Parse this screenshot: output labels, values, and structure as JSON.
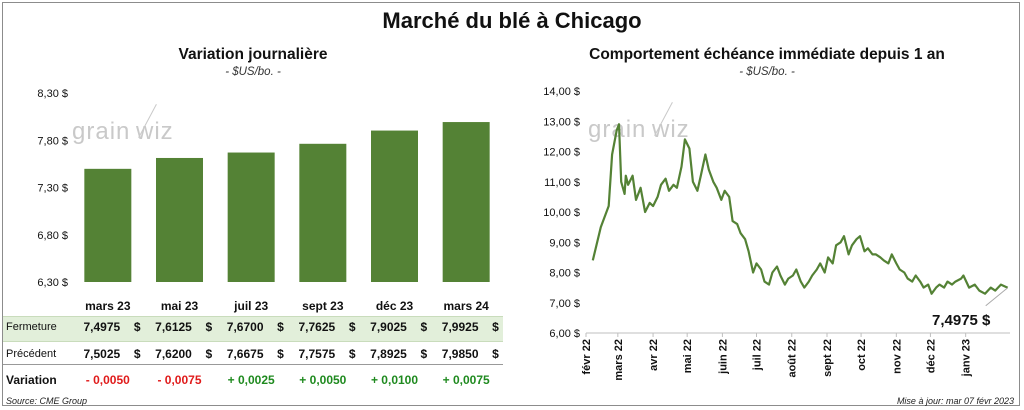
{
  "main_title": "Marché du blé à Chicago",
  "watermark": "grainwiz",
  "left": {
    "title": "Variation  journalière",
    "subtitle": "- $US/bo. -",
    "chart_data": {
      "type": "bar",
      "categories": [
        "mars 23",
        "mai 23",
        "juil 23",
        "sept 23",
        "déc 23",
        "mars 24"
      ],
      "values": [
        7.4975,
        7.6125,
        7.67,
        7.7625,
        7.9025,
        7.9925
      ],
      "ylim": [
        6.3,
        8.3
      ],
      "yticks": [
        "6,30 $",
        "6,80 $",
        "7,30 $",
        "7,80 $",
        "8,30 $"
      ],
      "ytick_values": [
        6.3,
        6.8,
        7.3,
        7.8,
        8.3
      ],
      "bar_color": "#548235"
    },
    "table": {
      "row_labels": {
        "fermeture": "Fermeture",
        "precedent": "Précédent",
        "variation": "Variation"
      },
      "fermeture": [
        "7,4975",
        "7,6125",
        "7,6700",
        "7,7625",
        "7,9025",
        "7,9925"
      ],
      "precedent": [
        "7,5025",
        "7,6200",
        "7,6675",
        "7,7575",
        "7,8925",
        "7,9850"
      ],
      "variation": [
        "- 0,0050",
        "- 0,0075",
        "+ 0,0025",
        "+ 0,0050",
        "+ 0,0100",
        "+ 0,0075"
      ],
      "variation_sign": [
        "neg",
        "neg",
        "pos",
        "pos",
        "pos",
        "pos"
      ],
      "dollar": "$"
    }
  },
  "right": {
    "title": "Comportement  échéance immédiate depuis 1 an",
    "subtitle": "- $US/bo. -",
    "last_price": "7,4975 $",
    "chart_data": {
      "type": "line",
      "ylim": [
        6.0,
        14.0
      ],
      "yticks": [
        "6,00 $",
        "7,00 $",
        "8,00 $",
        "9,00 $",
        "10,00 $",
        "11,00 $",
        "12,00 $",
        "13,00 $",
        "14,00 $"
      ],
      "ytick_values": [
        6,
        7,
        8,
        9,
        10,
        11,
        12,
        13,
        14
      ],
      "xticks": [
        "févr 22",
        "mars 22",
        "avr 22",
        "mai 22",
        "juin 22",
        "juil 22",
        "août 22",
        "sept 22",
        "oct 22",
        "nov 22",
        "déc 22",
        "janv 23"
      ],
      "line_color": "#548235",
      "x": [
        "2022-02-07",
        "2022-02-14",
        "2022-02-21",
        "2022-02-24",
        "2022-02-28",
        "2022-03-02",
        "2022-03-04",
        "2022-03-07",
        "2022-03-08",
        "2022-03-10",
        "2022-03-14",
        "2022-03-17",
        "2022-03-21",
        "2022-03-25",
        "2022-03-29",
        "2022-04-01",
        "2022-04-05",
        "2022-04-08",
        "2022-04-12",
        "2022-04-15",
        "2022-04-19",
        "2022-04-22",
        "2022-04-26",
        "2022-04-29",
        "2022-05-03",
        "2022-05-06",
        "2022-05-10",
        "2022-05-13",
        "2022-05-17",
        "2022-05-20",
        "2022-05-24",
        "2022-05-27",
        "2022-05-31",
        "2022-06-03",
        "2022-06-07",
        "2022-06-10",
        "2022-06-14",
        "2022-06-17",
        "2022-06-21",
        "2022-06-24",
        "2022-06-28",
        "2022-07-01",
        "2022-07-05",
        "2022-07-08",
        "2022-07-12",
        "2022-07-15",
        "2022-07-19",
        "2022-07-22",
        "2022-07-26",
        "2022-07-29",
        "2022-08-02",
        "2022-08-05",
        "2022-08-09",
        "2022-08-12",
        "2022-08-16",
        "2022-08-19",
        "2022-08-23",
        "2022-08-26",
        "2022-08-30",
        "2022-09-02",
        "2022-09-06",
        "2022-09-09",
        "2022-09-13",
        "2022-09-16",
        "2022-09-20",
        "2022-09-23",
        "2022-09-27",
        "2022-09-30",
        "2022-10-04",
        "2022-10-07",
        "2022-10-11",
        "2022-10-14",
        "2022-10-18",
        "2022-10-21",
        "2022-10-25",
        "2022-10-28",
        "2022-11-01",
        "2022-11-04",
        "2022-11-08",
        "2022-11-11",
        "2022-11-15",
        "2022-11-18",
        "2022-11-22",
        "2022-11-25",
        "2022-11-29",
        "2022-12-02",
        "2022-12-06",
        "2022-12-09",
        "2022-12-13",
        "2022-12-16",
        "2022-12-20",
        "2022-12-23",
        "2022-12-28",
        "2022-12-30",
        "2023-01-04",
        "2023-01-09",
        "2023-01-13",
        "2023-01-18",
        "2023-01-23",
        "2023-01-27",
        "2023-02-01",
        "2023-02-07"
      ],
      "y": [
        8.4,
        9.5,
        10.2,
        11.9,
        12.7,
        12.9,
        11.0,
        10.6,
        11.2,
        10.9,
        11.2,
        10.4,
        10.8,
        10.0,
        10.3,
        10.2,
        10.5,
        10.9,
        11.1,
        10.7,
        10.9,
        10.8,
        11.5,
        12.4,
        12.1,
        11.0,
        10.7,
        11.2,
        11.9,
        11.4,
        11.0,
        10.8,
        10.4,
        10.7,
        10.5,
        9.7,
        9.6,
        9.3,
        9.1,
        8.7,
        8.0,
        8.3,
        8.1,
        7.7,
        7.6,
        8.0,
        8.2,
        7.9,
        7.6,
        7.8,
        7.9,
        8.1,
        7.7,
        7.5,
        7.7,
        7.9,
        8.1,
        8.3,
        8.0,
        8.5,
        8.3,
        8.9,
        9.0,
        9.2,
        8.6,
        8.9,
        9.1,
        9.2,
        8.7,
        8.8,
        8.6,
        8.6,
        8.5,
        8.4,
        8.3,
        8.6,
        8.3,
        8.1,
        8.0,
        7.8,
        7.7,
        7.9,
        7.7,
        7.5,
        7.6,
        7.3,
        7.5,
        7.6,
        7.5,
        7.7,
        7.6,
        7.7,
        7.8,
        7.9,
        7.5,
        7.6,
        7.4,
        7.3,
        7.5,
        7.4,
        7.6,
        7.4975
      ]
    }
  },
  "footer": {
    "source": "Source: CME Group",
    "updated": "Mise à jour: mar 07 févr 2023"
  }
}
